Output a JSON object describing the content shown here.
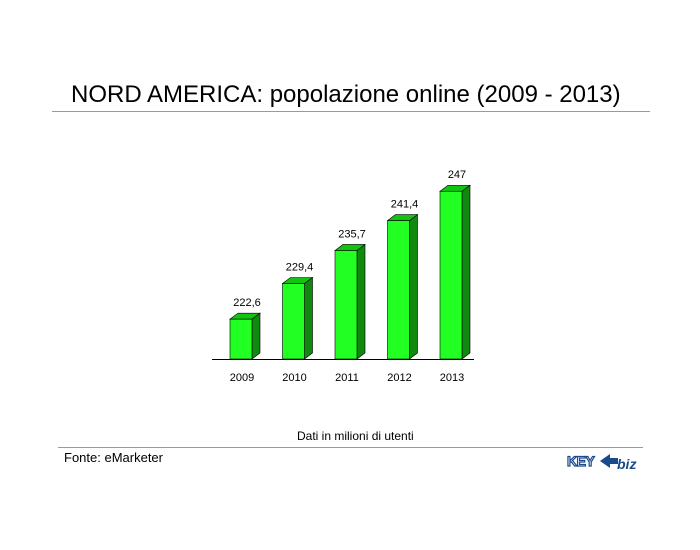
{
  "header": {
    "title": "NORD AMERICA: popolazione online (2009 - 2013)"
  },
  "chart_data": {
    "type": "bar",
    "categories": [
      "2009",
      "2010",
      "2011",
      "2012",
      "2013"
    ],
    "values": [
      222.6,
      229.4,
      235.7,
      241.4,
      247
    ],
    "value_labels": [
      "222,6",
      "229,4",
      "235,7",
      "241,4",
      "247"
    ],
    "title": "",
    "xlabel": "",
    "ylabel": "",
    "ylim": [
      215,
      248
    ],
    "grid": false,
    "legend": "none",
    "colors": {
      "bar_front": "#22ff22",
      "bar_side": "#0f8a0f",
      "bar_top": "#11c411",
      "outline": "#000000"
    }
  },
  "footer": {
    "note": "Dati in milioni di utenti",
    "source": "Fonte: eMarketer",
    "logo_text_main": "KEY4",
    "logo_text_sub": "biz"
  }
}
